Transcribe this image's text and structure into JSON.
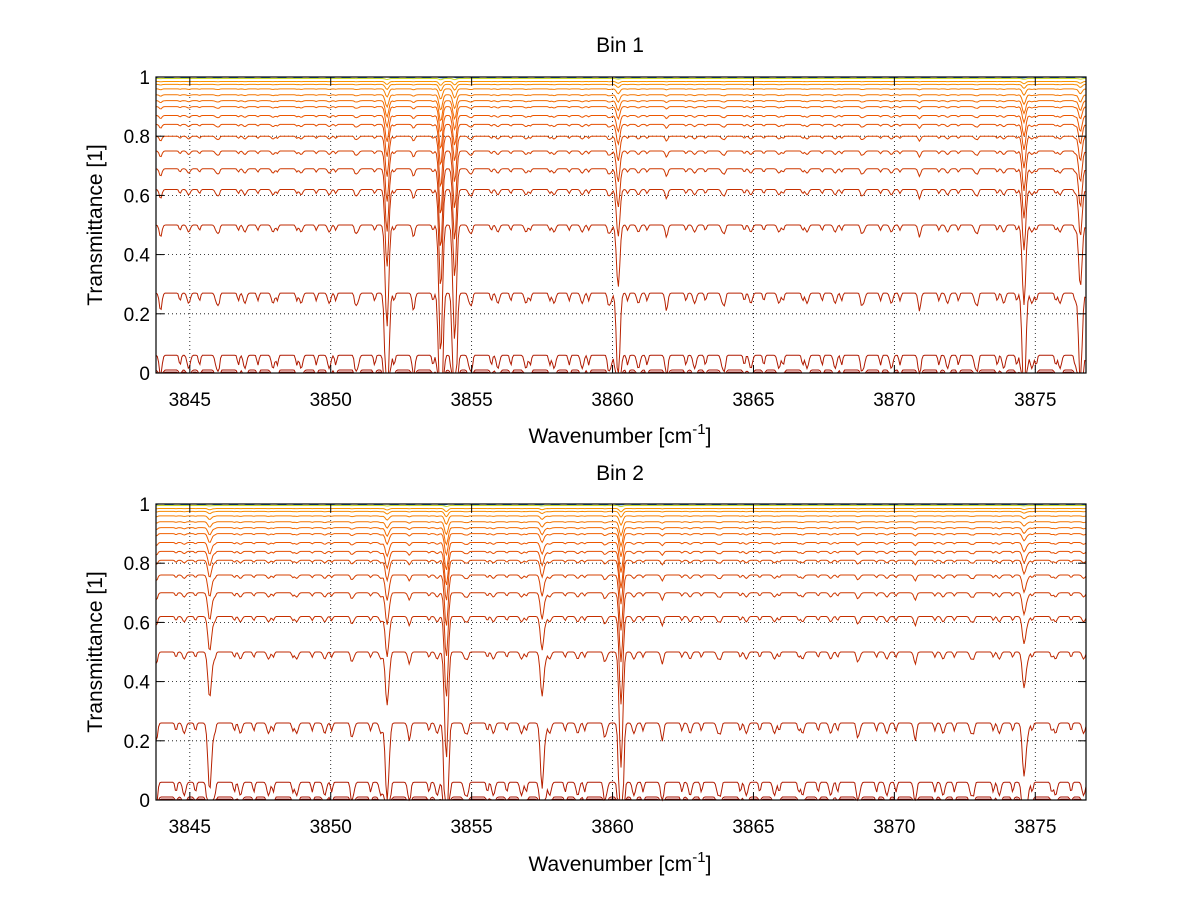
{
  "chart_data": [
    {
      "type": "line",
      "title": "Bin 1",
      "xlabel": "Wavenumber [cm",
      "xlabel_superscript": "-1",
      "xlabel_suffix": "]",
      "ylabel": "Transmittance [1]",
      "xlim": [
        3843.8,
        3876.8
      ],
      "ylim": [
        0,
        1
      ],
      "xticks": [
        3845,
        3850,
        3855,
        3860,
        3865,
        3870,
        3875
      ],
      "yticks": [
        0,
        0.2,
        0.4,
        0.6,
        0.8,
        1
      ],
      "ytick_labels": [
        "0",
        "0.2",
        "0.4",
        "0.6",
        "0.8",
        "1"
      ],
      "grid": "dotted",
      "series_baselines": [
        1.0,
        1.0,
        0.995,
        0.985,
        0.975,
        0.96,
        0.94,
        0.92,
        0.9,
        0.87,
        0.84,
        0.8,
        0.75,
        0.69,
        0.62,
        0.5,
        0.27,
        0.06,
        0.01,
        0.003
      ],
      "absorption_lines": [
        {
          "x": 3852.0,
          "depth": 0.55
        },
        {
          "x": 3853.9,
          "depth": 0.7
        },
        {
          "x": 3854.4,
          "depth": 0.65
        },
        {
          "x": 3860.2,
          "depth": 0.35
        },
        {
          "x": 3874.6,
          "depth": 0.45
        },
        {
          "x": 3876.6,
          "depth": 0.35
        }
      ]
    },
    {
      "type": "line",
      "title": "Bin 2",
      "xlabel": "Wavenumber [cm",
      "xlabel_superscript": "-1",
      "xlabel_suffix": "]",
      "ylabel": "Transmittance [1]",
      "xlim": [
        3843.8,
        3876.8
      ],
      "ylim": [
        0,
        1
      ],
      "xticks": [
        3845,
        3850,
        3855,
        3860,
        3865,
        3870,
        3875
      ],
      "yticks": [
        0,
        0.2,
        0.4,
        0.6,
        0.8,
        1
      ],
      "ytick_labels": [
        "0",
        "0.2",
        "0.4",
        "0.6",
        "0.8",
        "1"
      ],
      "grid": "dotted",
      "series_baselines": [
        1.0,
        1.0,
        0.995,
        0.985,
        0.975,
        0.96,
        0.94,
        0.92,
        0.9,
        0.87,
        0.84,
        0.81,
        0.76,
        0.7,
        0.62,
        0.5,
        0.26,
        0.06,
        0.01,
        0.003
      ],
      "absorption_lines": [
        {
          "x": 3845.7,
          "depth": 0.25
        },
        {
          "x": 3852.0,
          "depth": 0.3
        },
        {
          "x": 3854.1,
          "depth": 0.6
        },
        {
          "x": 3857.5,
          "depth": 0.25
        },
        {
          "x": 3860.3,
          "depth": 0.65
        },
        {
          "x": 3874.6,
          "depth": 0.2
        }
      ]
    }
  ]
}
